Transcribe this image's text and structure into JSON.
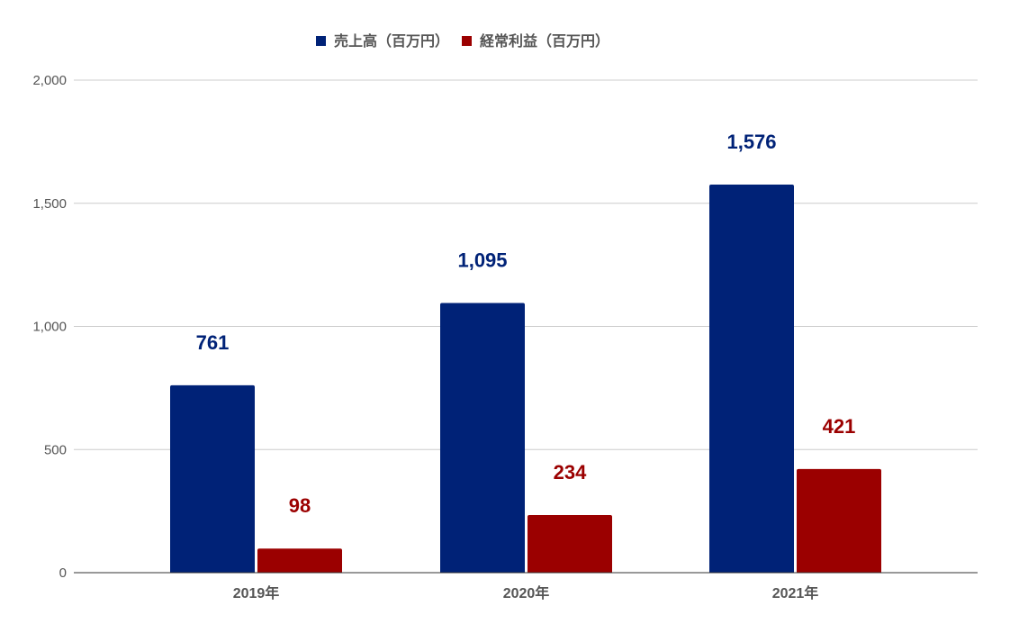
{
  "chart_data": {
    "type": "bar",
    "categories": [
      "2019年",
      "2020年",
      "2021年"
    ],
    "series": [
      {
        "name": "売上高（百万円）",
        "values": [
          761,
          1095,
          1576
        ],
        "color": "#002277"
      },
      {
        "name": "経常利益（百万円）",
        "values": [
          98,
          234,
          421
        ],
        "color": "#9b0000"
      }
    ],
    "data_labels": [
      [
        "761",
        "1,095",
        "1,576"
      ],
      [
        "98",
        "234",
        "421"
      ]
    ],
    "ylim": [
      0,
      2000
    ],
    "yticks": [
      0,
      500,
      1000,
      1500,
      2000
    ],
    "ytick_labels": [
      "0",
      "500",
      "1,000",
      "1,500",
      "2,000"
    ],
    "grid": true,
    "legend_position": "top-center",
    "title": "",
    "xlabel": "",
    "ylabel": ""
  }
}
